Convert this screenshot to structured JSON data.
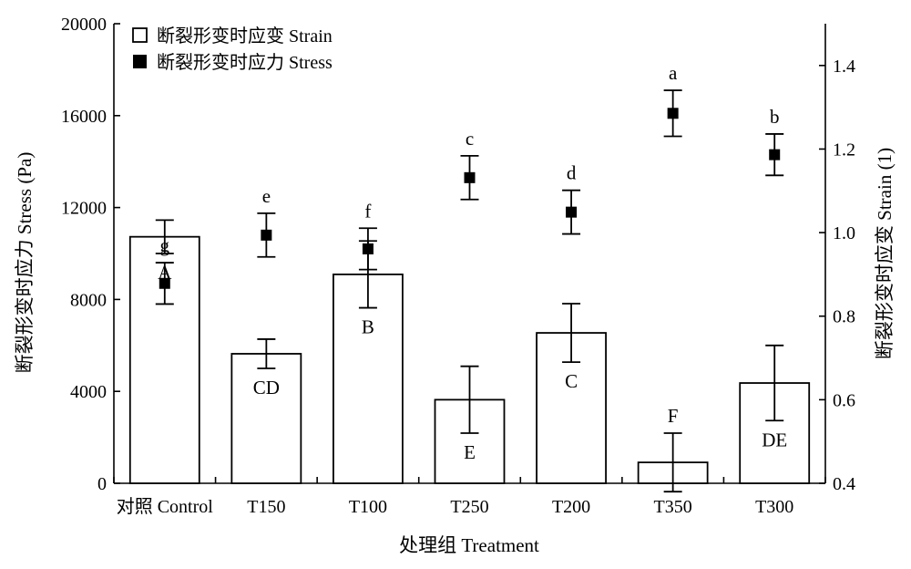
{
  "chart_data": {
    "type": "bar",
    "xlabel": "处理组 Treatment",
    "ylabel_left": "断裂形变时应力 Stress (Pa)",
    "ylabel_right": "断裂形变时应变 Strain (1)",
    "categories": [
      "对照 Control",
      "T150",
      "T100",
      "T250",
      "T200",
      "T350",
      "T300"
    ],
    "y_left": {
      "lim": [
        0,
        20000
      ],
      "ticks": [
        0,
        4000,
        8000,
        12000,
        16000,
        20000
      ]
    },
    "y_right": {
      "lim": [
        0.4,
        1.5
      ],
      "ticks": [
        0.4,
        0.6,
        0.8,
        1.0,
        1.2,
        1.4
      ],
      "tick_labels": [
        "0.4",
        "0.6",
        "0.8",
        "1.0",
        "1.2",
        "1.4"
      ]
    },
    "legend": {
      "position": "top-left"
    },
    "series": [
      {
        "name": "断裂形变时应变 Strain",
        "kind": "bar",
        "axis": "right",
        "values": [
          0.99,
          0.71,
          0.9,
          0.6,
          0.76,
          0.45,
          0.64
        ],
        "errors": [
          0.04,
          0.035,
          0.08,
          0.08,
          0.07,
          0.07,
          0.09
        ],
        "letters": [
          "A",
          "CD",
          "B",
          "E",
          "C",
          "F",
          "DE"
        ]
      },
      {
        "name": "断裂形变时应力 Stress",
        "kind": "point",
        "axis": "left",
        "values": [
          8700,
          10800,
          10200,
          13300,
          11800,
          16100,
          14300
        ],
        "errors": [
          900,
          950,
          900,
          950,
          950,
          1000,
          900
        ],
        "letters": [
          "g",
          "e",
          "f",
          "c",
          "d",
          "a",
          "b"
        ]
      }
    ]
  }
}
